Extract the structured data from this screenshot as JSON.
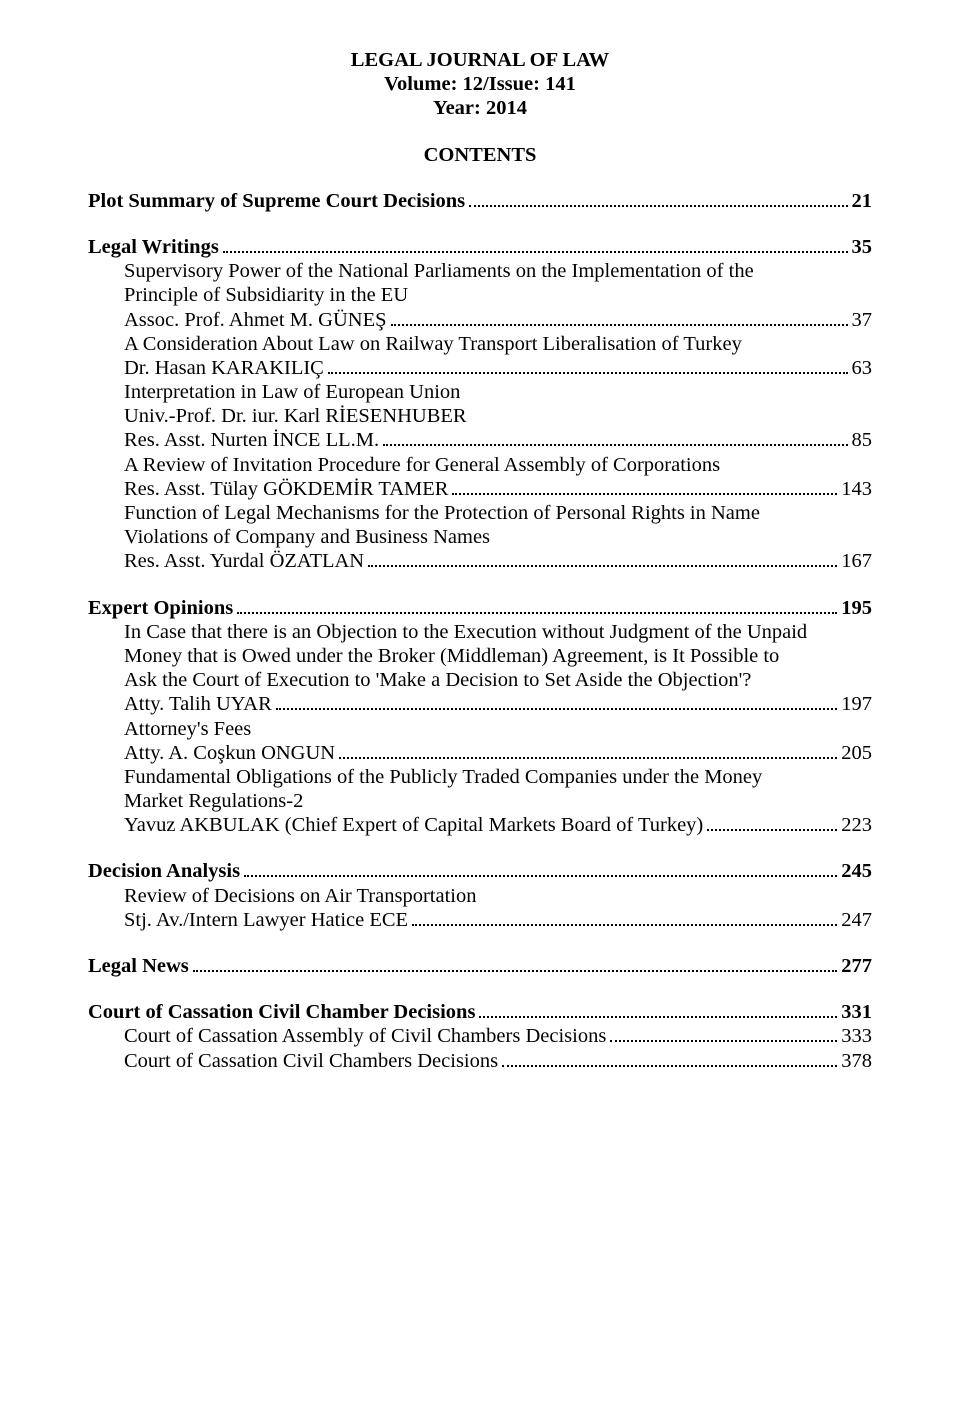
{
  "header": {
    "line1": "LEGAL JOURNAL OF LAW",
    "line2": "Volume: 12/Issue: 141",
    "line3": "Year: 2014"
  },
  "contents_heading": "CONTENTS",
  "groups": [
    {
      "entries": [
        {
          "label": "Plot Summary of Supreme Court Decisions",
          "page": "21",
          "bold": true,
          "indent": false
        }
      ]
    },
    {
      "entries": [
        {
          "label": "Legal Writings",
          "page": "35",
          "bold": true,
          "indent": false
        },
        {
          "desc": [
            "Supervisory Power of the National Parliaments on the Implementation of the",
            "Principle of Subsidiarity in the EU"
          ],
          "label": "Assoc. Prof. Ahmet M. GÜNEŞ",
          "page": "37",
          "bold": false,
          "indent": true
        },
        {
          "desc": [
            "A Consideration About Law on Railway Transport Liberalisation of Turkey"
          ],
          "label": "Dr. Hasan KARAKILIÇ",
          "page": "63",
          "bold": false,
          "indent": true
        },
        {
          "desc": [
            "Interpretation in Law of European Union"
          ],
          "label": "Univ.-Prof. Dr. iur. Karl RİESENHUBER",
          "page": "",
          "bold": false,
          "indent": true,
          "noleader": true
        },
        {
          "label": "Res. Asst. Nurten İNCE LL.M.",
          "page": "85",
          "bold": false,
          "indent": true
        },
        {
          "desc": [
            "A Review of Invitation Procedure for General Assembly of Corporations"
          ],
          "label": "Res. Asst. Tülay GÖKDEMİR TAMER",
          "page": "143",
          "bold": false,
          "indent": true
        },
        {
          "desc": [
            "Function of Legal Mechanisms for the Protection of Personal Rights in Name",
            "Violations of Company and Business Names"
          ],
          "label": "Res. Asst. Yurdal ÖZATLAN",
          "page": "167",
          "bold": false,
          "indent": true
        }
      ]
    },
    {
      "entries": [
        {
          "label": "Expert Opinions",
          "page": "195",
          "bold": true,
          "indent": false
        },
        {
          "desc": [
            "In Case that there is an Objection to the Execution without Judgment of the Unpaid",
            "Money that is Owed under the Broker (Middleman) Agreement, is It Possible to",
            "Ask the Court of Execution to 'Make a Decision to Set Aside the Objection'?"
          ],
          "label": "Atty. Talih UYAR",
          "page": "197",
          "bold": false,
          "indent": true
        },
        {
          "desc": [
            "Attorney's Fees"
          ],
          "label": "Atty. A. Coşkun ONGUN",
          "page": "205",
          "bold": false,
          "indent": true
        },
        {
          "desc": [
            "Fundamental Obligations of the Publicly Traded Companies under the Money",
            "Market Regulations-2"
          ],
          "label": "Yavuz AKBULAK (Chief Expert of Capital Markets Board of Turkey)",
          "page": "223",
          "bold": false,
          "indent": true
        }
      ]
    },
    {
      "entries": [
        {
          "label": "Decision Analysis",
          "page": "245",
          "bold": true,
          "indent": false
        },
        {
          "desc": [
            "Review of Decisions on Air Transportation"
          ],
          "label": "Stj. Av./Intern Lawyer Hatice ECE",
          "page": "247",
          "bold": false,
          "indent": true
        }
      ]
    },
    {
      "entries": [
        {
          "label": "Legal News",
          "page": "277",
          "bold": true,
          "indent": false
        }
      ]
    },
    {
      "entries": [
        {
          "label": "Court of Cassation Civil Chamber Decisions",
          "page": "331",
          "bold": true,
          "indent": false
        },
        {
          "label": "Court of Cassation Assembly of Civil Chambers Decisions",
          "page": "333",
          "bold": false,
          "indent": true
        },
        {
          "label": "Court of Cassation Civil Chambers Decisions",
          "page": "378",
          "bold": false,
          "indent": true
        }
      ]
    }
  ]
}
